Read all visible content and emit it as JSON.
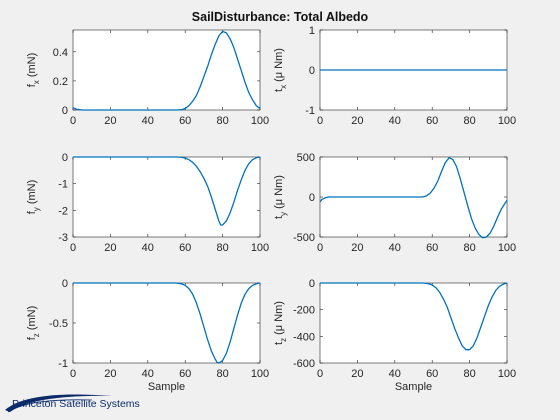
{
  "title": "SailDisturbance: Total Albedo",
  "brand": {
    "name": "Princeton Satellite Systems"
  },
  "colors": {
    "series": "#0072bd",
    "background": "#f0f0f0",
    "axes": "#ffffff",
    "brand": "#0a2a6b"
  },
  "chart_data": [
    {
      "type": "line",
      "id": "fx",
      "ylabel": {
        "main": "f",
        "sub": "x",
        "unit": " (mN)"
      },
      "xlabel": "",
      "xlim": [
        0,
        100
      ],
      "ylim": [
        0,
        0.55
      ],
      "xticks": [
        0,
        20,
        40,
        60,
        80,
        100
      ],
      "xtick_labels": [
        "0",
        "20",
        "40",
        "60",
        "80",
        "100"
      ],
      "yticks": [
        0,
        0.2,
        0.4
      ],
      "ytick_labels": [
        "0",
        "0.2",
        "0.4"
      ],
      "x": [
        0,
        2,
        5,
        50,
        55,
        58,
        60,
        62,
        64,
        66,
        68,
        70,
        72,
        74,
        76,
        78,
        80,
        82,
        84,
        86,
        88,
        90,
        92,
        94,
        96,
        98,
        100
      ],
      "y": [
        0.015,
        0.005,
        0,
        0,
        0,
        0.002,
        0.01,
        0.03,
        0.06,
        0.1,
        0.16,
        0.23,
        0.3,
        0.38,
        0.45,
        0.51,
        0.54,
        0.53,
        0.49,
        0.43,
        0.35,
        0.27,
        0.19,
        0.12,
        0.07,
        0.03,
        0.01
      ]
    },
    {
      "type": "line",
      "id": "tx",
      "ylabel": {
        "main": "t",
        "sub": "x",
        "unit": " (μ Nm)"
      },
      "xlabel": "",
      "xlim": [
        0,
        100
      ],
      "ylim": [
        -1,
        1
      ],
      "xticks": [
        0,
        20,
        40,
        60,
        80,
        100
      ],
      "xtick_labels": [
        "0",
        "20",
        "40",
        "60",
        "80",
        "100"
      ],
      "yticks": [
        -1,
        0,
        1
      ],
      "ytick_labels": [
        "-1",
        "0",
        "1"
      ],
      "x": [
        0,
        100
      ],
      "y": [
        0,
        0
      ]
    },
    {
      "type": "line",
      "id": "fy",
      "ylabel": {
        "main": "f",
        "sub": "y",
        "unit": " (mN)"
      },
      "xlabel": "",
      "xlim": [
        0,
        100
      ],
      "ylim": [
        -3,
        0
      ],
      "xticks": [
        0,
        20,
        40,
        60,
        80,
        100
      ],
      "xtick_labels": [
        "0",
        "20",
        "40",
        "60",
        "80",
        "100"
      ],
      "yticks": [
        -3,
        -2,
        -1,
        0
      ],
      "ytick_labels": [
        "-3",
        "-2",
        "-1",
        "0"
      ],
      "x": [
        0,
        55,
        58,
        60,
        62,
        64,
        66,
        68,
        70,
        72,
        74,
        76,
        78,
        79,
        80,
        82,
        84,
        86,
        88,
        90,
        92,
        94,
        96,
        98,
        100
      ],
      "y": [
        0,
        0,
        -0.01,
        -0.04,
        -0.1,
        -0.2,
        -0.35,
        -0.55,
        -0.8,
        -1.1,
        -1.5,
        -1.95,
        -2.4,
        -2.55,
        -2.55,
        -2.4,
        -2.1,
        -1.7,
        -1.25,
        -0.85,
        -0.5,
        -0.25,
        -0.1,
        -0.03,
        0
      ]
    },
    {
      "type": "line",
      "id": "ty",
      "ylabel": {
        "main": "t",
        "sub": "y",
        "unit": " (μ Nm)"
      },
      "xlabel": "",
      "xlim": [
        0,
        100
      ],
      "ylim": [
        -500,
        500
      ],
      "xticks": [
        0,
        20,
        40,
        60,
        80,
        100
      ],
      "xtick_labels": [
        "0",
        "20",
        "40",
        "60",
        "80",
        "100"
      ],
      "yticks": [
        -500,
        0,
        500
      ],
      "ytick_labels": [
        "-500",
        "0",
        "500"
      ],
      "x": [
        0,
        1,
        3,
        5,
        50,
        55,
        57,
        59,
        61,
        63,
        65,
        67,
        69,
        71,
        73,
        75,
        77,
        79,
        81,
        83,
        85,
        87,
        89,
        91,
        93,
        95,
        97,
        100
      ],
      "y": [
        -60,
        -30,
        -8,
        0,
        0,
        0,
        15,
        50,
        110,
        200,
        320,
        430,
        490,
        470,
        380,
        230,
        60,
        -110,
        -270,
        -390,
        -470,
        -510,
        -500,
        -450,
        -360,
        -250,
        -150,
        -40
      ]
    },
    {
      "type": "line",
      "id": "fz",
      "ylabel": {
        "main": "f",
        "sub": "z",
        "unit": " (mN)"
      },
      "xlabel": "Sample",
      "xlim": [
        0,
        100
      ],
      "ylim": [
        -1,
        0
      ],
      "xticks": [
        0,
        20,
        40,
        60,
        80,
        100
      ],
      "xtick_labels": [
        "0",
        "20",
        "40",
        "60",
        "80",
        "100"
      ],
      "yticks": [
        -1,
        -0.5,
        0
      ],
      "ytick_labels": [
        "-1",
        "-0.5",
        "0"
      ],
      "x": [
        0,
        55,
        58,
        60,
        62,
        64,
        66,
        68,
        70,
        72,
        74,
        76,
        77,
        78,
        80,
        82,
        84,
        86,
        88,
        90,
        92,
        94,
        96,
        98,
        100
      ],
      "y": [
        0,
        0,
        -0.01,
        -0.03,
        -0.07,
        -0.14,
        -0.25,
        -0.39,
        -0.55,
        -0.71,
        -0.85,
        -0.95,
        -0.99,
        -1.0,
        -0.97,
        -0.88,
        -0.74,
        -0.57,
        -0.4,
        -0.25,
        -0.14,
        -0.07,
        -0.03,
        -0.01,
        0
      ]
    },
    {
      "type": "line",
      "id": "tz",
      "ylabel": {
        "main": "t",
        "sub": "z",
        "unit": " (μ Nm)"
      },
      "xlabel": "Sample",
      "xlim": [
        0,
        100
      ],
      "ylim": [
        -600,
        0
      ],
      "xticks": [
        0,
        20,
        40,
        60,
        80,
        100
      ],
      "xtick_labels": [
        "0",
        "20",
        "40",
        "60",
        "80",
        "100"
      ],
      "yticks": [
        -600,
        -400,
        -200,
        0
      ],
      "ytick_labels": [
        "-600",
        "-400",
        "-200",
        "0"
      ],
      "x": [
        0,
        55,
        58,
        60,
        62,
        64,
        66,
        68,
        70,
        72,
        74,
        76,
        78,
        80,
        82,
        84,
        86,
        88,
        90,
        92,
        94,
        96,
        98,
        100
      ],
      "y": [
        0,
        0,
        -5,
        -15,
        -35,
        -70,
        -120,
        -180,
        -260,
        -340,
        -410,
        -470,
        -500,
        -500,
        -470,
        -410,
        -330,
        -250,
        -170,
        -105,
        -55,
        -25,
        -8,
        0
      ]
    }
  ]
}
